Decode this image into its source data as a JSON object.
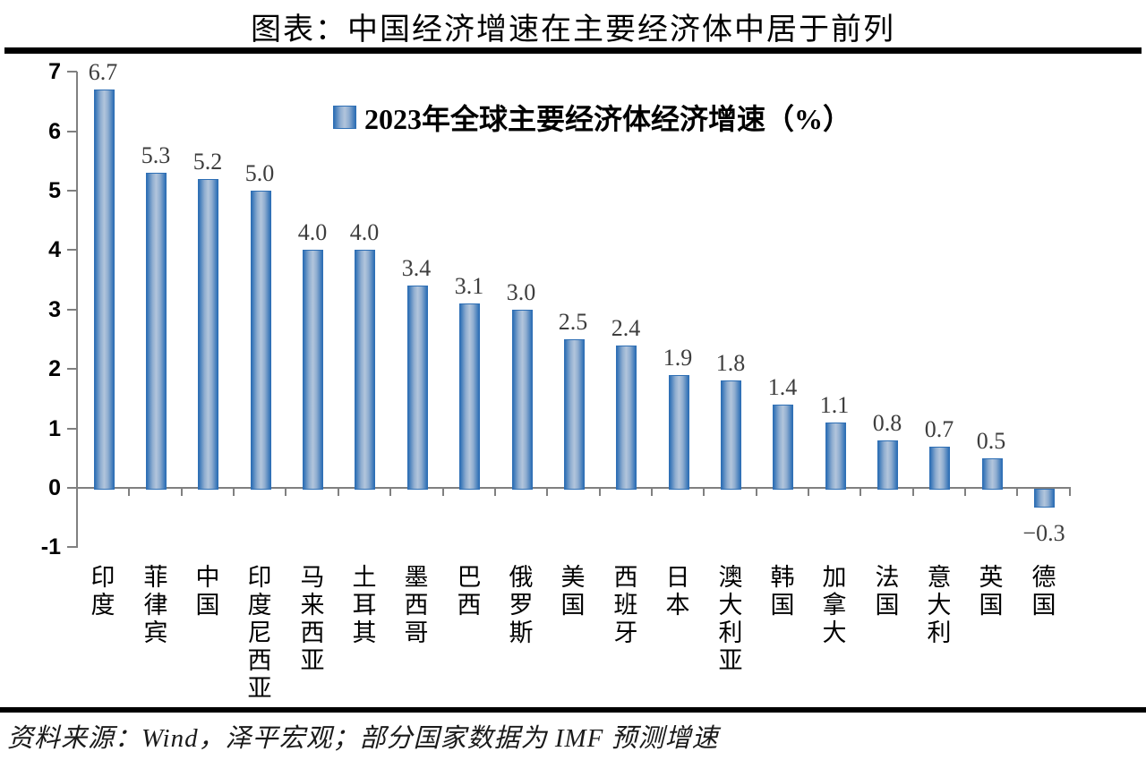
{
  "page": {
    "title": "图表：中国经济增速在主要经济体中居于前列",
    "source_note": "资料来源：Wind，泽平宏观；部分国家数据为 IMF 预测增速"
  },
  "chart_data": {
    "type": "bar",
    "title": "2023年全球主要经济体经济增速（%）",
    "legend": {
      "label": "2023年全球主要经济体经济增速（%）",
      "position": "top-center-inside",
      "marker": "blue-gradient-square"
    },
    "categories": [
      "印度",
      "菲律宾",
      "中国",
      "印度尼西亚",
      "马来西亚",
      "土耳其",
      "墨西哥",
      "巴西",
      "俄罗斯",
      "美国",
      "西班牙",
      "日本",
      "澳大利亚",
      "韩国",
      "加拿大",
      "法国",
      "意大利",
      "英国",
      "德国"
    ],
    "values": [
      6.7,
      5.3,
      5.2,
      5.0,
      4.0,
      4.0,
      3.4,
      3.1,
      3.0,
      2.5,
      2.4,
      1.9,
      1.8,
      1.4,
      1.1,
      0.8,
      0.7,
      0.5,
      -0.3
    ],
    "value_labels": [
      "6.7",
      "5.3",
      "5.2",
      "5.0",
      "4.0",
      "4.0",
      "3.4",
      "3.1",
      "3.0",
      "2.5",
      "2.4",
      "1.9",
      "1.8",
      "1.4",
      "1.1",
      "0.8",
      "0.7",
      "0.5",
      "−0.3"
    ],
    "xlabel": "",
    "ylabel": "",
    "ylim": [
      -1,
      7
    ],
    "yticks": [
      7,
      6,
      5,
      4,
      3,
      2,
      1,
      0,
      -1
    ],
    "grid": false,
    "colors": {
      "bar_edge": "#2e6fb5",
      "bar_mid": "#b2c5dc",
      "axis": "#808080",
      "value_label": "#3d3d3d",
      "text": "#000000"
    }
  }
}
